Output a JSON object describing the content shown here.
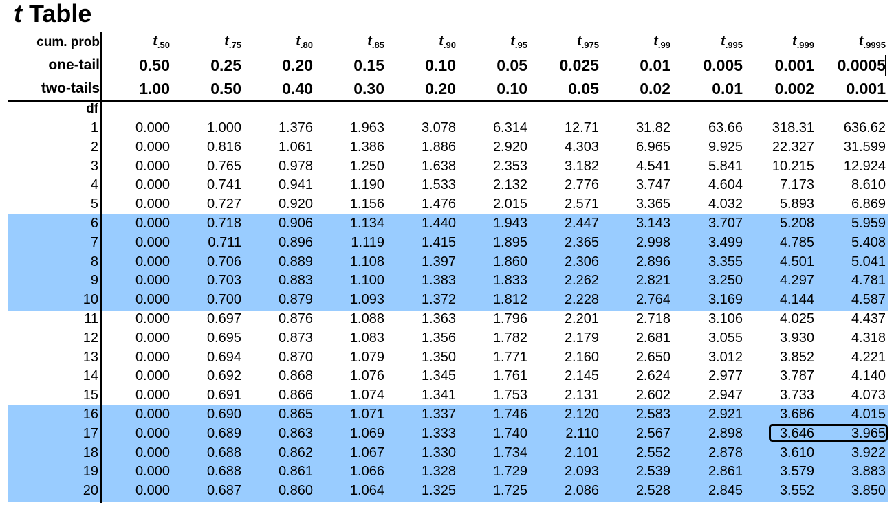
{
  "title": {
    "symbol": "t",
    "text": "Table"
  },
  "row_labels": {
    "cum_prob": "cum. prob",
    "one_tail": "one-tail",
    "two_tails": "two-tails",
    "df": "df"
  },
  "t_symbol": "t",
  "cum_probs": [
    ".50",
    ".75",
    ".80",
    ".85",
    ".90",
    ".95",
    ".975",
    ".99",
    ".995",
    ".999",
    ".9995"
  ],
  "one_tail": [
    "0.50",
    "0.25",
    "0.20",
    "0.15",
    "0.10",
    "0.05",
    "0.025",
    "0.01",
    "0.005",
    "0.001",
    "0.0005"
  ],
  "two_tails": [
    "1.00",
    "0.50",
    "0.40",
    "0.30",
    "0.20",
    "0.10",
    "0.05",
    "0.02",
    "0.01",
    "0.002",
    "0.001"
  ],
  "highlight_color": "#99ccff",
  "rows": [
    {
      "df": "1",
      "values": [
        "0.000",
        "1.000",
        "1.376",
        "1.963",
        "3.078",
        "6.314",
        "12.71",
        "31.82",
        "63.66",
        "318.31",
        "636.62"
      ]
    },
    {
      "df": "2",
      "values": [
        "0.000",
        "0.816",
        "1.061",
        "1.386",
        "1.886",
        "2.920",
        "4.303",
        "6.965",
        "9.925",
        "22.327",
        "31.599"
      ]
    },
    {
      "df": "3",
      "values": [
        "0.000",
        "0.765",
        "0.978",
        "1.250",
        "1.638",
        "2.353",
        "3.182",
        "4.541",
        "5.841",
        "10.215",
        "12.924"
      ]
    },
    {
      "df": "4",
      "values": [
        "0.000",
        "0.741",
        "0.941",
        "1.190",
        "1.533",
        "2.132",
        "2.776",
        "3.747",
        "4.604",
        "7.173",
        "8.610"
      ]
    },
    {
      "df": "5",
      "values": [
        "0.000",
        "0.727",
        "0.920",
        "1.156",
        "1.476",
        "2.015",
        "2.571",
        "3.365",
        "4.032",
        "5.893",
        "6.869"
      ]
    },
    {
      "df": "6",
      "values": [
        "0.000",
        "0.718",
        "0.906",
        "1.134",
        "1.440",
        "1.943",
        "2.447",
        "3.143",
        "3.707",
        "5.208",
        "5.959"
      ]
    },
    {
      "df": "7",
      "values": [
        "0.000",
        "0.711",
        "0.896",
        "1.119",
        "1.415",
        "1.895",
        "2.365",
        "2.998",
        "3.499",
        "4.785",
        "5.408"
      ]
    },
    {
      "df": "8",
      "values": [
        "0.000",
        "0.706",
        "0.889",
        "1.108",
        "1.397",
        "1.860",
        "2.306",
        "2.896",
        "3.355",
        "4.501",
        "5.041"
      ]
    },
    {
      "df": "9",
      "values": [
        "0.000",
        "0.703",
        "0.883",
        "1.100",
        "1.383",
        "1.833",
        "2.262",
        "2.821",
        "3.250",
        "4.297",
        "4.781"
      ]
    },
    {
      "df": "10",
      "values": [
        "0.000",
        "0.700",
        "0.879",
        "1.093",
        "1.372",
        "1.812",
        "2.228",
        "2.764",
        "3.169",
        "4.144",
        "4.587"
      ]
    },
    {
      "df": "11",
      "values": [
        "0.000",
        "0.697",
        "0.876",
        "1.088",
        "1.363",
        "1.796",
        "2.201",
        "2.718",
        "3.106",
        "4.025",
        "4.437"
      ]
    },
    {
      "df": "12",
      "values": [
        "0.000",
        "0.695",
        "0.873",
        "1.083",
        "1.356",
        "1.782",
        "2.179",
        "2.681",
        "3.055",
        "3.930",
        "4.318"
      ]
    },
    {
      "df": "13",
      "values": [
        "0.000",
        "0.694",
        "0.870",
        "1.079",
        "1.350",
        "1.771",
        "2.160",
        "2.650",
        "3.012",
        "3.852",
        "4.221"
      ]
    },
    {
      "df": "14",
      "values": [
        "0.000",
        "0.692",
        "0.868",
        "1.076",
        "1.345",
        "1.761",
        "2.145",
        "2.624",
        "2.977",
        "3.787",
        "4.140"
      ]
    },
    {
      "df": "15",
      "values": [
        "0.000",
        "0.691",
        "0.866",
        "1.074",
        "1.341",
        "1.753",
        "2.131",
        "2.602",
        "2.947",
        "3.733",
        "4.073"
      ]
    },
    {
      "df": "16",
      "values": [
        "0.000",
        "0.690",
        "0.865",
        "1.071",
        "1.337",
        "1.746",
        "2.120",
        "2.583",
        "2.921",
        "3.686",
        "4.015"
      ]
    },
    {
      "df": "17",
      "values": [
        "0.000",
        "0.689",
        "0.863",
        "1.069",
        "1.333",
        "1.740",
        "2.110",
        "2.567",
        "2.898",
        "3.646",
        "3.965"
      ]
    },
    {
      "df": "18",
      "values": [
        "0.000",
        "0.688",
        "0.862",
        "1.067",
        "1.330",
        "1.734",
        "2.101",
        "2.552",
        "2.878",
        "3.610",
        "3.922"
      ]
    },
    {
      "df": "19",
      "values": [
        "0.000",
        "0.688",
        "0.861",
        "1.066",
        "1.328",
        "1.729",
        "2.093",
        "2.539",
        "2.861",
        "3.579",
        "3.883"
      ]
    },
    {
      "df": "20",
      "values": [
        "0.000",
        "0.687",
        "0.860",
        "1.064",
        "1.325",
        "1.725",
        "2.086",
        "2.528",
        "2.845",
        "3.552",
        "3.850"
      ]
    }
  ]
}
